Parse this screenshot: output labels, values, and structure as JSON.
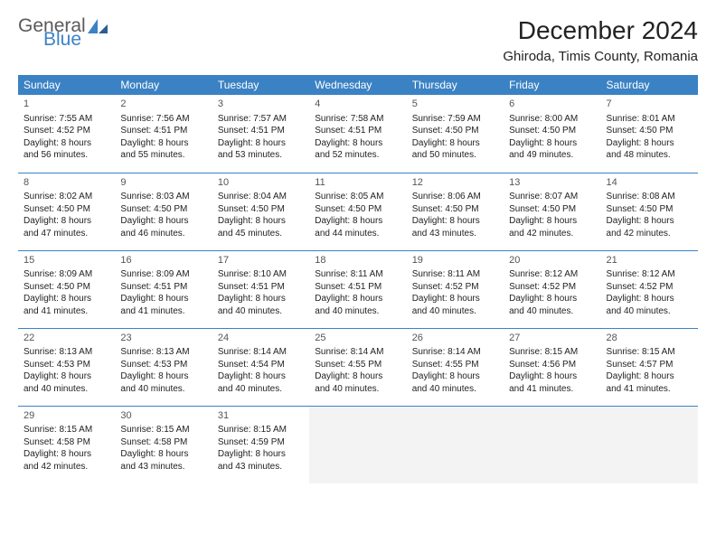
{
  "logo": {
    "general": "General",
    "blue": "Blue"
  },
  "title": "December 2024",
  "location": "Ghiroda, Timis County, Romania",
  "colors": {
    "header_bg": "#3b82c4",
    "border": "#3b82c4",
    "empty_bg": "#f3f3f3",
    "text": "#222222",
    "logo_gray": "#5a5a5a",
    "logo_blue": "#3b82c4"
  },
  "weekdays": [
    "Sunday",
    "Monday",
    "Tuesday",
    "Wednesday",
    "Thursday",
    "Friday",
    "Saturday"
  ],
  "weeks": [
    [
      {
        "n": "1",
        "sunrise": "Sunrise: 7:55 AM",
        "sunset": "Sunset: 4:52 PM",
        "dl1": "Daylight: 8 hours",
        "dl2": "and 56 minutes."
      },
      {
        "n": "2",
        "sunrise": "Sunrise: 7:56 AM",
        "sunset": "Sunset: 4:51 PM",
        "dl1": "Daylight: 8 hours",
        "dl2": "and 55 minutes."
      },
      {
        "n": "3",
        "sunrise": "Sunrise: 7:57 AM",
        "sunset": "Sunset: 4:51 PM",
        "dl1": "Daylight: 8 hours",
        "dl2": "and 53 minutes."
      },
      {
        "n": "4",
        "sunrise": "Sunrise: 7:58 AM",
        "sunset": "Sunset: 4:51 PM",
        "dl1": "Daylight: 8 hours",
        "dl2": "and 52 minutes."
      },
      {
        "n": "5",
        "sunrise": "Sunrise: 7:59 AM",
        "sunset": "Sunset: 4:50 PM",
        "dl1": "Daylight: 8 hours",
        "dl2": "and 50 minutes."
      },
      {
        "n": "6",
        "sunrise": "Sunrise: 8:00 AM",
        "sunset": "Sunset: 4:50 PM",
        "dl1": "Daylight: 8 hours",
        "dl2": "and 49 minutes."
      },
      {
        "n": "7",
        "sunrise": "Sunrise: 8:01 AM",
        "sunset": "Sunset: 4:50 PM",
        "dl1": "Daylight: 8 hours",
        "dl2": "and 48 minutes."
      }
    ],
    [
      {
        "n": "8",
        "sunrise": "Sunrise: 8:02 AM",
        "sunset": "Sunset: 4:50 PM",
        "dl1": "Daylight: 8 hours",
        "dl2": "and 47 minutes."
      },
      {
        "n": "9",
        "sunrise": "Sunrise: 8:03 AM",
        "sunset": "Sunset: 4:50 PM",
        "dl1": "Daylight: 8 hours",
        "dl2": "and 46 minutes."
      },
      {
        "n": "10",
        "sunrise": "Sunrise: 8:04 AM",
        "sunset": "Sunset: 4:50 PM",
        "dl1": "Daylight: 8 hours",
        "dl2": "and 45 minutes."
      },
      {
        "n": "11",
        "sunrise": "Sunrise: 8:05 AM",
        "sunset": "Sunset: 4:50 PM",
        "dl1": "Daylight: 8 hours",
        "dl2": "and 44 minutes."
      },
      {
        "n": "12",
        "sunrise": "Sunrise: 8:06 AM",
        "sunset": "Sunset: 4:50 PM",
        "dl1": "Daylight: 8 hours",
        "dl2": "and 43 minutes."
      },
      {
        "n": "13",
        "sunrise": "Sunrise: 8:07 AM",
        "sunset": "Sunset: 4:50 PM",
        "dl1": "Daylight: 8 hours",
        "dl2": "and 42 minutes."
      },
      {
        "n": "14",
        "sunrise": "Sunrise: 8:08 AM",
        "sunset": "Sunset: 4:50 PM",
        "dl1": "Daylight: 8 hours",
        "dl2": "and 42 minutes."
      }
    ],
    [
      {
        "n": "15",
        "sunrise": "Sunrise: 8:09 AM",
        "sunset": "Sunset: 4:50 PM",
        "dl1": "Daylight: 8 hours",
        "dl2": "and 41 minutes."
      },
      {
        "n": "16",
        "sunrise": "Sunrise: 8:09 AM",
        "sunset": "Sunset: 4:51 PM",
        "dl1": "Daylight: 8 hours",
        "dl2": "and 41 minutes."
      },
      {
        "n": "17",
        "sunrise": "Sunrise: 8:10 AM",
        "sunset": "Sunset: 4:51 PM",
        "dl1": "Daylight: 8 hours",
        "dl2": "and 40 minutes."
      },
      {
        "n": "18",
        "sunrise": "Sunrise: 8:11 AM",
        "sunset": "Sunset: 4:51 PM",
        "dl1": "Daylight: 8 hours",
        "dl2": "and 40 minutes."
      },
      {
        "n": "19",
        "sunrise": "Sunrise: 8:11 AM",
        "sunset": "Sunset: 4:52 PM",
        "dl1": "Daylight: 8 hours",
        "dl2": "and 40 minutes."
      },
      {
        "n": "20",
        "sunrise": "Sunrise: 8:12 AM",
        "sunset": "Sunset: 4:52 PM",
        "dl1": "Daylight: 8 hours",
        "dl2": "and 40 minutes."
      },
      {
        "n": "21",
        "sunrise": "Sunrise: 8:12 AM",
        "sunset": "Sunset: 4:52 PM",
        "dl1": "Daylight: 8 hours",
        "dl2": "and 40 minutes."
      }
    ],
    [
      {
        "n": "22",
        "sunrise": "Sunrise: 8:13 AM",
        "sunset": "Sunset: 4:53 PM",
        "dl1": "Daylight: 8 hours",
        "dl2": "and 40 minutes."
      },
      {
        "n": "23",
        "sunrise": "Sunrise: 8:13 AM",
        "sunset": "Sunset: 4:53 PM",
        "dl1": "Daylight: 8 hours",
        "dl2": "and 40 minutes."
      },
      {
        "n": "24",
        "sunrise": "Sunrise: 8:14 AM",
        "sunset": "Sunset: 4:54 PM",
        "dl1": "Daylight: 8 hours",
        "dl2": "and 40 minutes."
      },
      {
        "n": "25",
        "sunrise": "Sunrise: 8:14 AM",
        "sunset": "Sunset: 4:55 PM",
        "dl1": "Daylight: 8 hours",
        "dl2": "and 40 minutes."
      },
      {
        "n": "26",
        "sunrise": "Sunrise: 8:14 AM",
        "sunset": "Sunset: 4:55 PM",
        "dl1": "Daylight: 8 hours",
        "dl2": "and 40 minutes."
      },
      {
        "n": "27",
        "sunrise": "Sunrise: 8:15 AM",
        "sunset": "Sunset: 4:56 PM",
        "dl1": "Daylight: 8 hours",
        "dl2": "and 41 minutes."
      },
      {
        "n": "28",
        "sunrise": "Sunrise: 8:15 AM",
        "sunset": "Sunset: 4:57 PM",
        "dl1": "Daylight: 8 hours",
        "dl2": "and 41 minutes."
      }
    ],
    [
      {
        "n": "29",
        "sunrise": "Sunrise: 8:15 AM",
        "sunset": "Sunset: 4:58 PM",
        "dl1": "Daylight: 8 hours",
        "dl2": "and 42 minutes."
      },
      {
        "n": "30",
        "sunrise": "Sunrise: 8:15 AM",
        "sunset": "Sunset: 4:58 PM",
        "dl1": "Daylight: 8 hours",
        "dl2": "and 43 minutes."
      },
      {
        "n": "31",
        "sunrise": "Sunrise: 8:15 AM",
        "sunset": "Sunset: 4:59 PM",
        "dl1": "Daylight: 8 hours",
        "dl2": "and 43 minutes."
      },
      null,
      null,
      null,
      null
    ]
  ]
}
